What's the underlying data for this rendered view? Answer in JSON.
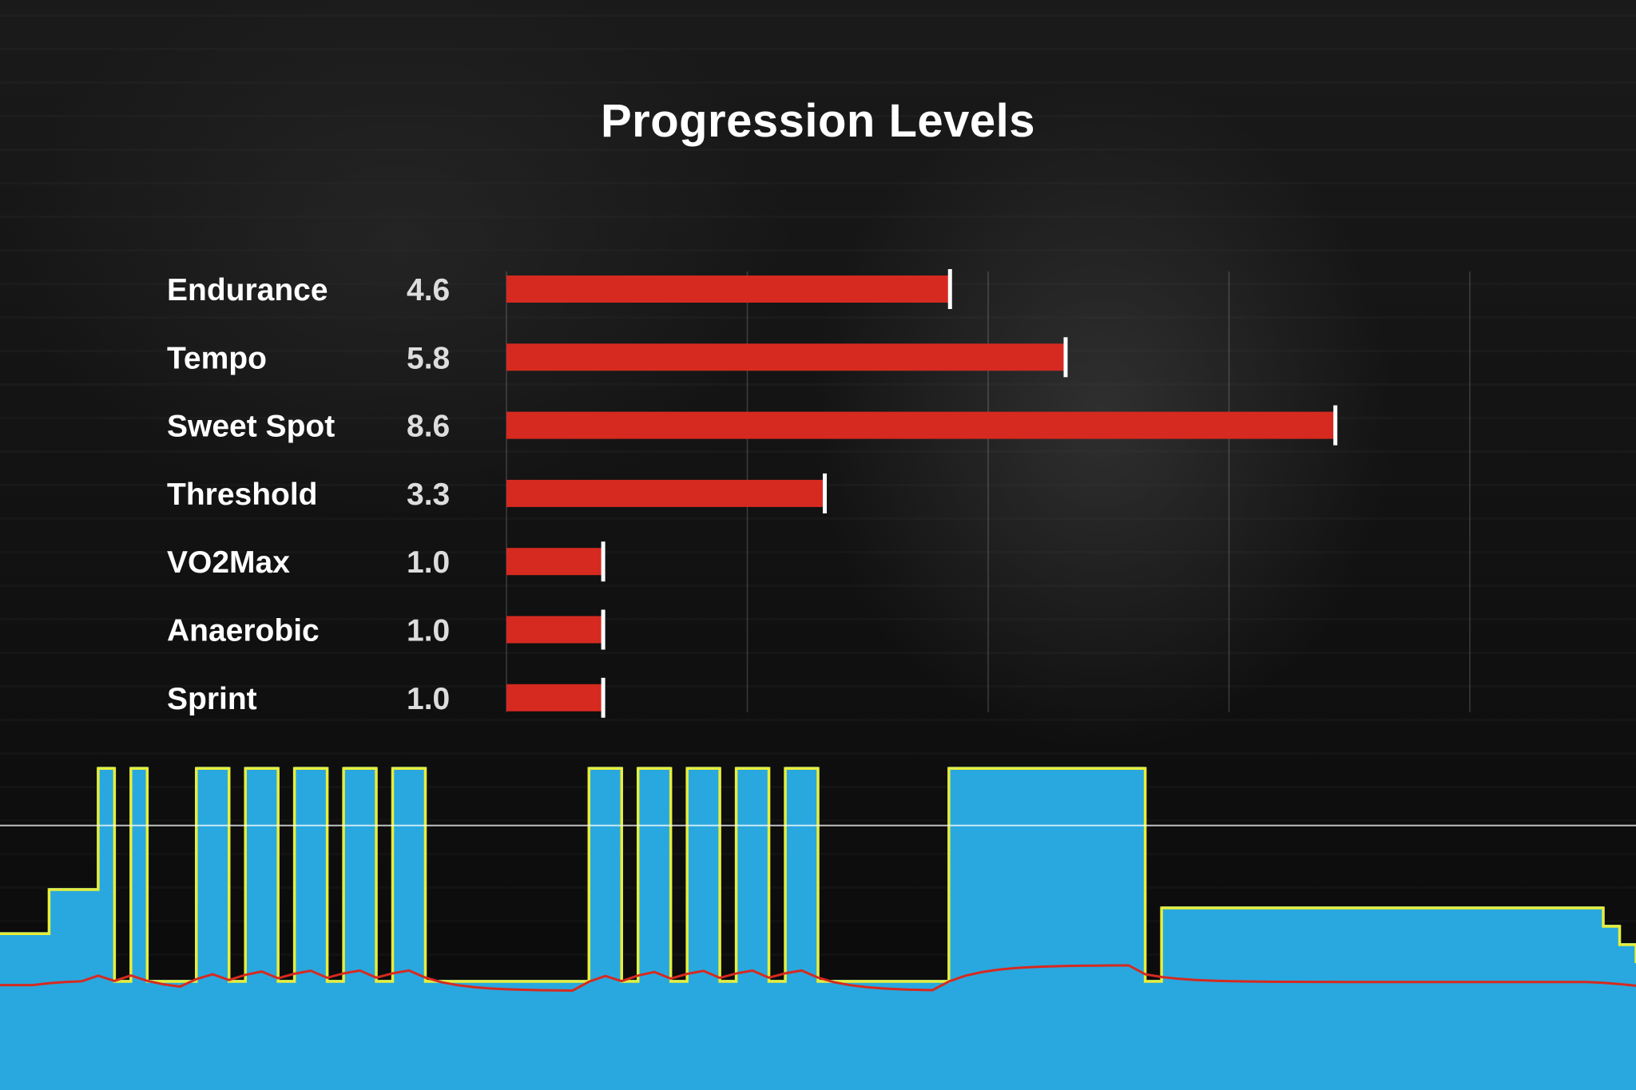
{
  "chart_data": [
    {
      "type": "bar",
      "orientation": "horizontal",
      "title": "Progression Levels",
      "categories": [
        "Endurance",
        "Tempo",
        "Sweet Spot",
        "Threshold",
        "VO2Max",
        "Anaerobic",
        "Sprint"
      ],
      "values": [
        4.6,
        5.8,
        8.6,
        3.3,
        1.0,
        1.0,
        1.0
      ],
      "value_labels": [
        "4.6",
        "5.8",
        "8.6",
        "3.3",
        "1.0",
        "1.0",
        "1.0"
      ],
      "xlim": [
        0,
        10
      ],
      "grid": true,
      "bar_color": "#d62a20",
      "marker_color": "#ffffff"
    },
    {
      "type": "area",
      "description_free": true,
      "ylim": [
        0,
        1
      ],
      "threshold": 0.72,
      "x": [
        0,
        1,
        2,
        3,
        4,
        5,
        6,
        7,
        8,
        9,
        10,
        11,
        12,
        13,
        14,
        15,
        16,
        17,
        18,
        19,
        20,
        21,
        22,
        23,
        24,
        25,
        26,
        27,
        28,
        29,
        30,
        31,
        32,
        33,
        34,
        35,
        36,
        37,
        38,
        39,
        40,
        41,
        42,
        43,
        44,
        45,
        46,
        47,
        48,
        49,
        50,
        51,
        52,
        53,
        54,
        55,
        56,
        57,
        58,
        59,
        60,
        61,
        62,
        63,
        64,
        65,
        66,
        67,
        68,
        69,
        70,
        71,
        72,
        73,
        74,
        75,
        76,
        77,
        78,
        79,
        80,
        81,
        82,
        83,
        84,
        85,
        86,
        87,
        88,
        89,
        90,
        91,
        92,
        93,
        94,
        95,
        96,
        97,
        98,
        99,
        100
      ],
      "series": [
        {
          "key": "target",
          "color": "#29a8df",
          "values": [
            0.43,
            0.43,
            0.43,
            0.55,
            0.55,
            0.55,
            0.88,
            0.3,
            0.88,
            0.3,
            0.3,
            0.3,
            0.88,
            0.88,
            0.3,
            0.88,
            0.88,
            0.3,
            0.88,
            0.88,
            0.3,
            0.88,
            0.88,
            0.3,
            0.88,
            0.88,
            0.3,
            0.3,
            0.3,
            0.3,
            0.3,
            0.3,
            0.3,
            0.3,
            0.3,
            0.3,
            0.88,
            0.88,
            0.3,
            0.88,
            0.88,
            0.3,
            0.88,
            0.88,
            0.3,
            0.88,
            0.88,
            0.3,
            0.88,
            0.88,
            0.3,
            0.3,
            0.3,
            0.3,
            0.3,
            0.3,
            0.3,
            0.3,
            0.88,
            0.88,
            0.88,
            0.88,
            0.88,
            0.88,
            0.88,
            0.88,
            0.88,
            0.88,
            0.88,
            0.88,
            0.3,
            0.5,
            0.5,
            0.5,
            0.5,
            0.5,
            0.5,
            0.5,
            0.5,
            0.5,
            0.5,
            0.5,
            0.5,
            0.5,
            0.5,
            0.5,
            0.5,
            0.5,
            0.5,
            0.5,
            0.5,
            0.5,
            0.5,
            0.5,
            0.5,
            0.5,
            0.5,
            0.5,
            0.45,
            0.4,
            0.35
          ]
        }
      ]
    }
  ]
}
